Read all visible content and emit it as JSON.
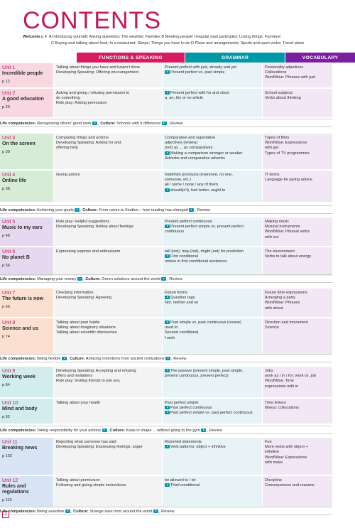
{
  "page_title": "CONTENTS",
  "page_number": "2",
  "welcome": {
    "label": "Welcome",
    "page": "p 4",
    "line1": "A Introducing yourself; Asking questions; The weather; Families   B Meeting people; Irregular past participles; Losing things; Furniture",
    "line2": "C Buying and talking about food; In a restaurant; Shops; Things you have to do   D Plans and arrangements; Sports and sport verbs; Travel plans"
  },
  "headers": {
    "functions": "FUNCTIONS & SPEAKING",
    "grammar": "GRAMMAR",
    "vocabulary": "VOCABULARY"
  },
  "life_label": "Life competencies:",
  "culture_label": "Culture:",
  "review_label": "Review",
  "sections": [
    {
      "units": [
        {
          "name": "Unit 1",
          "title": "Incredible people",
          "page": "p 12",
          "functions": [
            "Talking about things you have and haven't done",
            "Developing Speaking: Offering encouragement"
          ],
          "grammar": [
            "Present perfect with just, already and yet",
            "Present perfect vs. past simple"
          ],
          "vocabulary": [
            "Personality adjectives",
            "Collocations",
            "WordWise: Phrases with just"
          ]
        },
        {
          "name": "Unit 2",
          "title": "A good education",
          "page": "p 20",
          "functions": [
            "Asking and giving / refusing permission to",
            "do something",
            "Role play: Asking permission"
          ],
          "grammar": [
            "Present perfect with for and since",
            "a, an, the or no article"
          ],
          "vocabulary": [
            "School subjects",
            "Verbs about thinking"
          ]
        }
      ],
      "life": "Recognising others' good work",
      "culture": "Schools with a difference"
    },
    {
      "units": [
        {
          "name": "Unit 3",
          "title": "On the screen",
          "page": "p 30",
          "functions": [
            "Comparing things and actions",
            "Developing Speaking: Asking for and",
            "offering help"
          ],
          "grammar": [
            "Comparative and superlative",
            "adjectives (review)",
            "(not) as ... as comparatives",
            "Making a comparison stronger or weaker",
            "Adverbs and comparative adverbs"
          ],
          "vocabulary": [
            "Types of films",
            "WordWise: Expressions",
            "with get",
            "Types of TV programmes"
          ]
        },
        {
          "name": "Unit 4",
          "title": "Online life",
          "page": "p 38",
          "functions": [
            "Giving advice"
          ],
          "grammar": [
            "Indefinite pronouns (everyone, no one,",
            "someone, etc.)",
            "all / some / none / any of them",
            "should(n't), had better, ought to"
          ],
          "vocabulary": [
            "IT terms",
            "Language for giving advice"
          ]
        }
      ],
      "life": "Achieving your goals",
      "culture": "From caves to Kindles – how reading has changed"
    },
    {
      "units": [
        {
          "name": "Unit 5",
          "title": "Music to my ears",
          "page": "p 48",
          "functions": [
            "Role play: Helpful suggestions",
            "Developing Speaking: Asking about feelings"
          ],
          "grammar": [
            "Present perfect continuous",
            "Present perfect simple vs. present perfect",
            "continuous"
          ],
          "vocabulary": [
            "Making music",
            "Musical instruments",
            "WordWise: Phrasal verbs",
            "with out"
          ]
        },
        {
          "name": "Unit 6",
          "title": "No planet B",
          "page": "p 56",
          "functions": [
            "Expressing surprise and enthusiasm"
          ],
          "grammar": [
            "will (not), may (not), might (not) for prediction",
            "First conditional",
            "unless in first conditional sentences"
          ],
          "vocabulary": [
            "The environment",
            "Verbs to talk about energy"
          ]
        }
      ],
      "life": "Managing your money",
      "culture": "Green solutions around the world"
    },
    {
      "units": [
        {
          "name": "Unit 7",
          "title": "The future is now",
          "page": "p 66",
          "functions": [
            "Checking information",
            "Developing Speaking: Agreeing"
          ],
          "grammar": [
            "Future forms",
            "Question tags",
            "Nor, neither and so"
          ],
          "vocabulary": [
            "Future time expressions",
            "Arranging a party",
            "WordWise: Phrases",
            "with about"
          ]
        },
        {
          "name": "Unit 8",
          "title": "Science and us",
          "page": "p 74",
          "functions": [
            "Talking about past habits",
            "Talking about imaginary situations",
            "Talking about scientific discoveries"
          ],
          "grammar": [
            "Past simple vs. past continuous (review)",
            "used to",
            "Second conditional",
            "I wish"
          ],
          "vocabulary": [
            "Direction and movement",
            "Science"
          ]
        }
      ],
      "life": "Being flexible",
      "culture": "Amazing inventions from ancient civilizations"
    },
    {
      "units": [
        {
          "name": "Unit 9",
          "title": "Working week",
          "page": "p 84",
          "functions": [
            "Developing Speaking: Accepting and refusing",
            "offers and invitations",
            "Role play: Inviting friends to join you"
          ],
          "grammar": [
            "The passive (present simple, past simple,",
            "present continuous, present perfect)"
          ],
          "vocabulary": [
            "Jobs",
            "work as / in / for; work vs. job",
            "WordWise: Time",
            "expressions with in"
          ]
        },
        {
          "name": "Unit 10",
          "title": "Mind and body",
          "page": "p 92",
          "functions": [
            "Talking about your health"
          ],
          "grammar": [
            "Past perfect simple",
            "Past perfect continuous",
            "Past perfect simple vs. past perfect continuous"
          ],
          "vocabulary": [
            "Time linkers",
            "Illness: collocations"
          ]
        }
      ],
      "life": "Taking responsibility for your actions",
      "culture": "Keep in shape ... without going to the gym"
    },
    {
      "units": [
        {
          "name": "Unit 11",
          "title": "Breaking news",
          "page": "p 102",
          "functions": [
            "Reporting what someone has said",
            "Developing Speaking: Expressing feelings: anger"
          ],
          "grammar": [
            "Reported statements",
            "Verb patterns: object + infinitive"
          ],
          "vocabulary": [
            "Fun",
            "More verbs with object +",
            "infinitive",
            "WordWise: Expressions",
            "with make"
          ]
        },
        {
          "name": "Unit 12",
          "title": "Rules and regulations",
          "page": "p 110",
          "functions": [
            "Talking about permission",
            "Following and giving simple instructions"
          ],
          "grammar": [
            "be allowed to / let",
            "Third conditional"
          ],
          "vocabulary": [
            "Discipline",
            "Consequences and reasons"
          ]
        }
      ],
      "life": "Being assertive",
      "culture": "Strange laws from around the world"
    }
  ]
}
